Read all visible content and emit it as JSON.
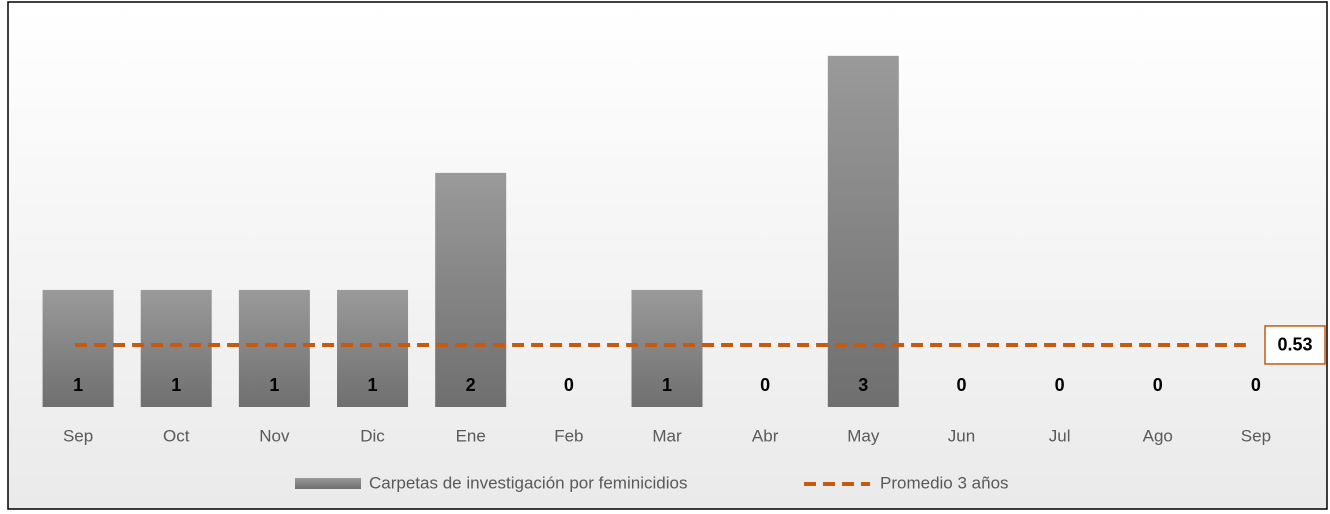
{
  "chart_data": {
    "type": "bar",
    "categories": [
      "Sep",
      "Oct",
      "Nov",
      "Dic",
      "Ene",
      "Feb",
      "Mar",
      "Abr",
      "May",
      "Jun",
      "Jul",
      "Ago",
      "Sep"
    ],
    "series": [
      {
        "name": "Carpetas de investigación por feminicidios",
        "type": "bar",
        "color": "#8a8a8a",
        "values": [
          1,
          1,
          1,
          1,
          2,
          0,
          1,
          0,
          3,
          0,
          0,
          0,
          0
        ]
      },
      {
        "name": "Promedio 3 años",
        "type": "line",
        "color": "#c55a11",
        "values": [
          0.53,
          0.53,
          0.53,
          0.53,
          0.53,
          0.53,
          0.53,
          0.53,
          0.53,
          0.53,
          0.53,
          0.53,
          0.53
        ]
      }
    ],
    "ylim": [
      0,
      3.4
    ],
    "legend": "bottom"
  }
}
